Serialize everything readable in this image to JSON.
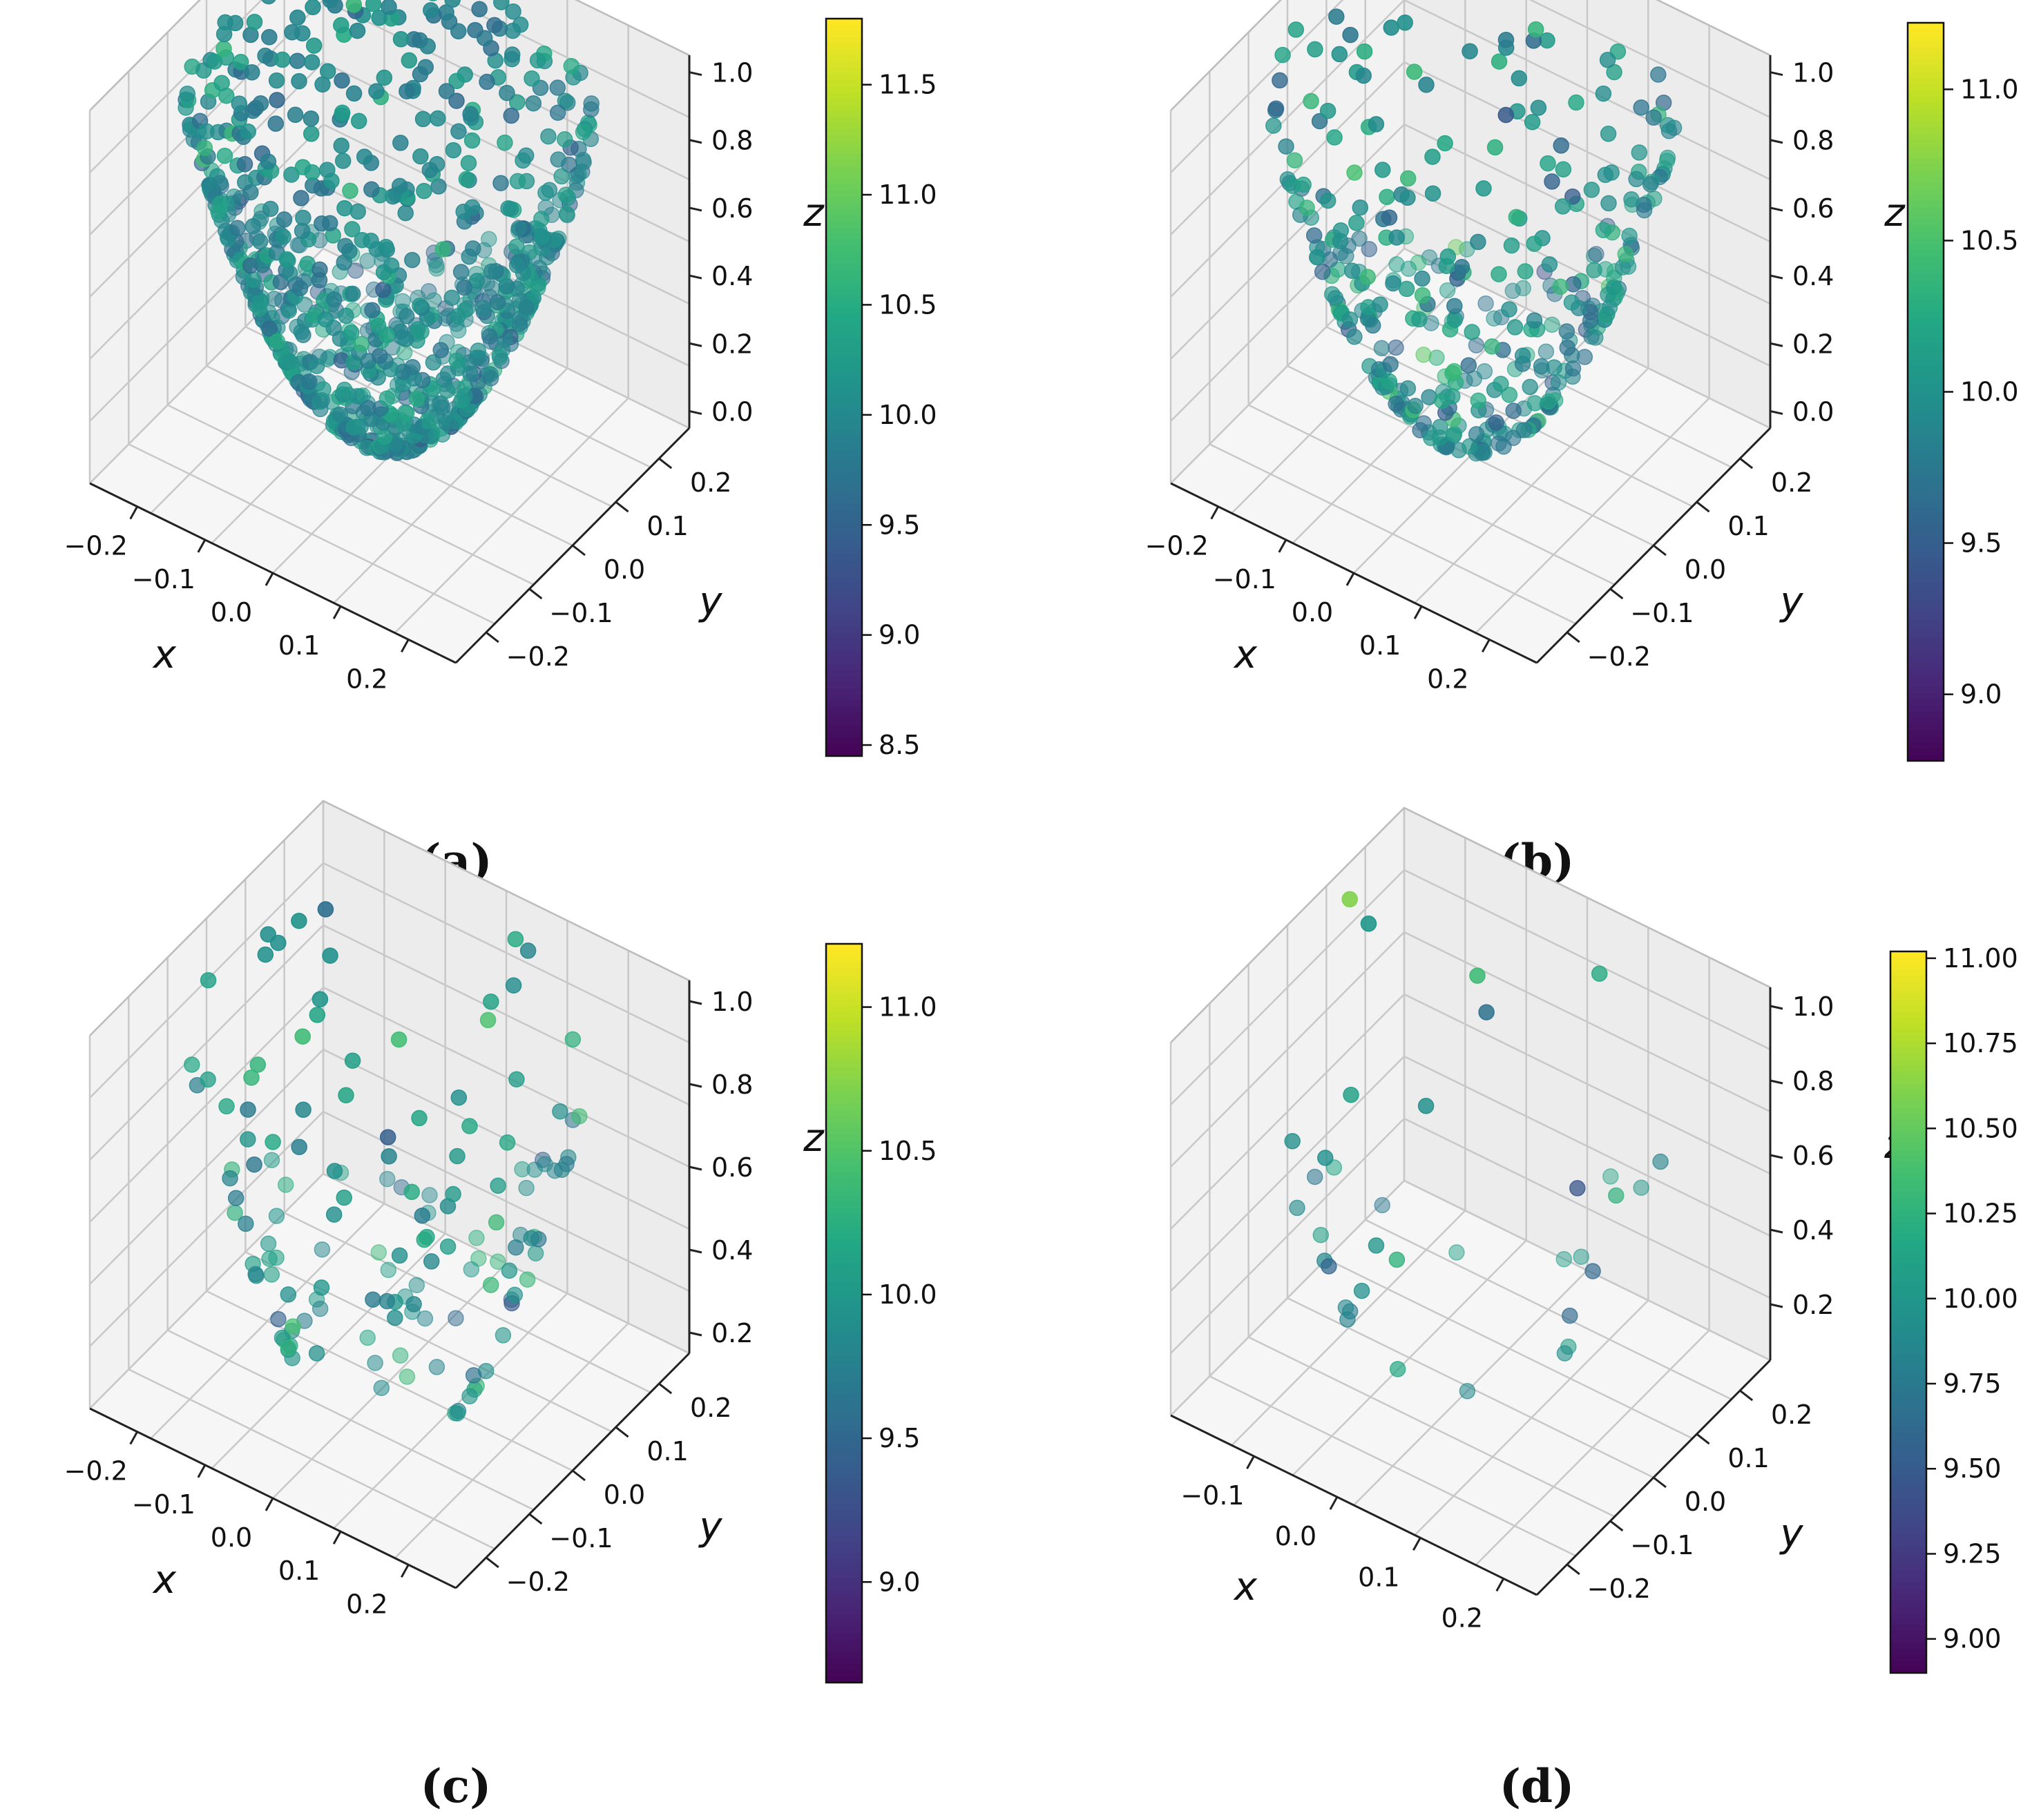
{
  "chart_data": [
    {
      "type": "scatter",
      "projection": "3d",
      "caption": "(a)",
      "xlabel": "x",
      "ylabel": "y",
      "zlabel": "z",
      "xticks": [
        "−0.2",
        "−0.1",
        "0.0",
        "0.1",
        "0.2"
      ],
      "yticks": [
        "−0.2",
        "−0.1",
        "0.0",
        "0.1",
        "0.2"
      ],
      "zticks": [
        "0.0",
        "0.2",
        "0.4",
        "0.6",
        "0.8",
        "1.0"
      ],
      "xlim": [
        -0.27,
        0.27
      ],
      "ylim": [
        -0.27,
        0.27
      ],
      "zlim": [
        -0.05,
        1.05
      ],
      "colormap": "viridis",
      "colorbar": {
        "ticks": [
          "8.5",
          "9.0",
          "9.5",
          "10.0",
          "10.5",
          "11.0",
          "11.5"
        ],
        "min": 8.45,
        "max": 11.8
      },
      "n_points": 900,
      "points_note": "points lie on paraboloid z = (x^2 + y^2) * 15, colored by value",
      "grid": true
    },
    {
      "type": "scatter",
      "projection": "3d",
      "caption": "(b)",
      "xlabel": "x",
      "ylabel": "y",
      "zlabel": "z",
      "xticks": [
        "−0.2",
        "−0.1",
        "0.0",
        "0.1",
        "0.2"
      ],
      "yticks": [
        "−0.2",
        "−0.1",
        "0.0",
        "0.1",
        "0.2"
      ],
      "zticks": [
        "0.0",
        "0.2",
        "0.4",
        "0.6",
        "0.8",
        "1.0"
      ],
      "xlim": [
        -0.27,
        0.27
      ],
      "ylim": [
        -0.27,
        0.27
      ],
      "zlim": [
        -0.05,
        1.05
      ],
      "colormap": "viridis",
      "colorbar": {
        "ticks": [
          "9.0",
          "9.5",
          "10.0",
          "10.5",
          "11.0"
        ],
        "min": 8.78,
        "max": 11.22
      },
      "n_points": 380,
      "grid": true
    },
    {
      "type": "scatter",
      "projection": "3d",
      "caption": "(c)",
      "xlabel": "x",
      "ylabel": "y",
      "zlabel": "z",
      "xticks": [
        "−0.2",
        "−0.1",
        "0.0",
        "0.1",
        "0.2"
      ],
      "yticks": [
        "−0.2",
        "−0.1",
        "0.0",
        "0.1",
        "0.2"
      ],
      "zticks": [
        "0.2",
        "0.4",
        "0.6",
        "0.8",
        "1.0"
      ],
      "xlim": [
        -0.27,
        0.27
      ],
      "ylim": [
        -0.27,
        0.27
      ],
      "zlim": [
        0.15,
        1.05
      ],
      "colormap": "viridis",
      "colorbar": {
        "ticks": [
          "9.0",
          "9.5",
          "10.0",
          "10.5",
          "11.0"
        ],
        "min": 8.65,
        "max": 11.22
      },
      "n_points": 170,
      "grid": true
    },
    {
      "type": "scatter",
      "projection": "3d",
      "caption": "(d)",
      "xlabel": "x",
      "ylabel": "y",
      "zlabel": "z",
      "xticks": [
        "−0.1",
        "0.0",
        "0.1",
        "0.2"
      ],
      "yticks": [
        "−0.2",
        "−0.1",
        "0.0",
        "0.1",
        "0.2"
      ],
      "zticks": [
        "0.2",
        "0.4",
        "0.6",
        "0.8",
        "1.0"
      ],
      "xlim": [
        -0.2,
        0.24
      ],
      "ylim": [
        -0.27,
        0.27
      ],
      "zlim": [
        0.05,
        1.05
      ],
      "colormap": "viridis",
      "colorbar": {
        "ticks": [
          "9.00",
          "9.25",
          "9.50",
          "9.75",
          "10.00",
          "10.25",
          "10.50",
          "10.75",
          "11.00"
        ],
        "min": 8.9,
        "max": 11.02
      },
      "n_points": 38,
      "grid": true
    }
  ]
}
